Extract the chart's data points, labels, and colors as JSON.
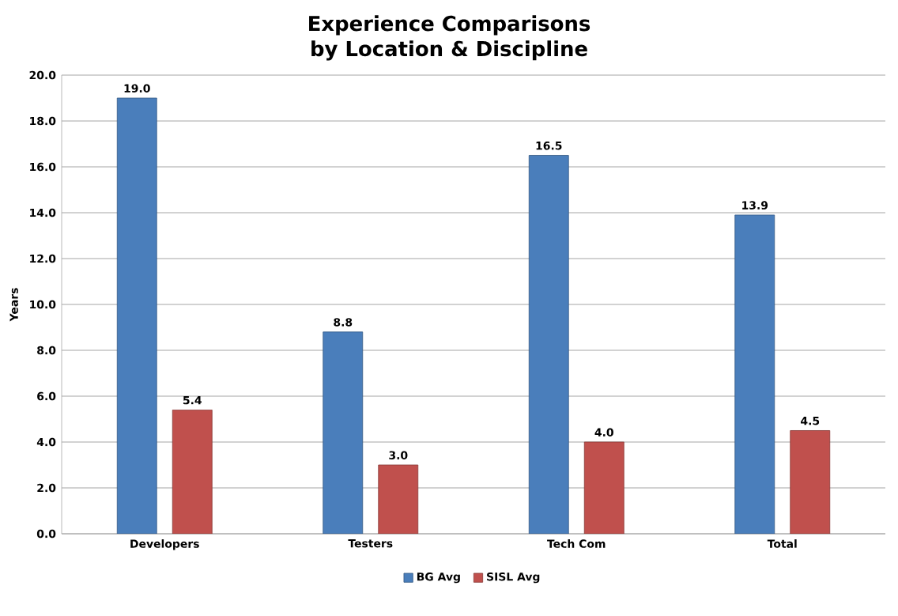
{
  "chart_data": {
    "type": "bar",
    "title": "Experience Comparisons\nby Location & Discipline",
    "ylabel": "Years",
    "categories": [
      "Developers",
      "Testers",
      "Tech Com",
      "Total"
    ],
    "series": [
      {
        "name": "BG Avg",
        "color": "#4a7ebb",
        "values": [
          19.0,
          8.8,
          16.5,
          13.9
        ],
        "value_labels": [
          "19.0",
          "8.8",
          "16.5",
          "13.9"
        ]
      },
      {
        "name": "SISL Avg",
        "color": "#c0504d",
        "values": [
          5.4,
          3.0,
          4.0,
          4.5
        ],
        "value_labels": [
          "5.4",
          "3.0",
          "4.0",
          "4.5"
        ]
      }
    ],
    "ylim": [
      0,
      20
    ],
    "yticks": [
      {
        "value": 0,
        "label": "0.0"
      },
      {
        "value": 2,
        "label": "2.0"
      },
      {
        "value": 4,
        "label": "4.0"
      },
      {
        "value": 6,
        "label": "6.0"
      },
      {
        "value": 8,
        "label": "8.0"
      },
      {
        "value": 10,
        "label": "10.0"
      },
      {
        "value": 12,
        "label": "12.0"
      },
      {
        "value": 14,
        "label": "14.0"
      },
      {
        "value": 16,
        "label": "16.0"
      },
      {
        "value": 18,
        "label": "18.0"
      },
      {
        "value": 20,
        "label": "20.0"
      }
    ],
    "grid": "y",
    "legend": "bottom"
  }
}
